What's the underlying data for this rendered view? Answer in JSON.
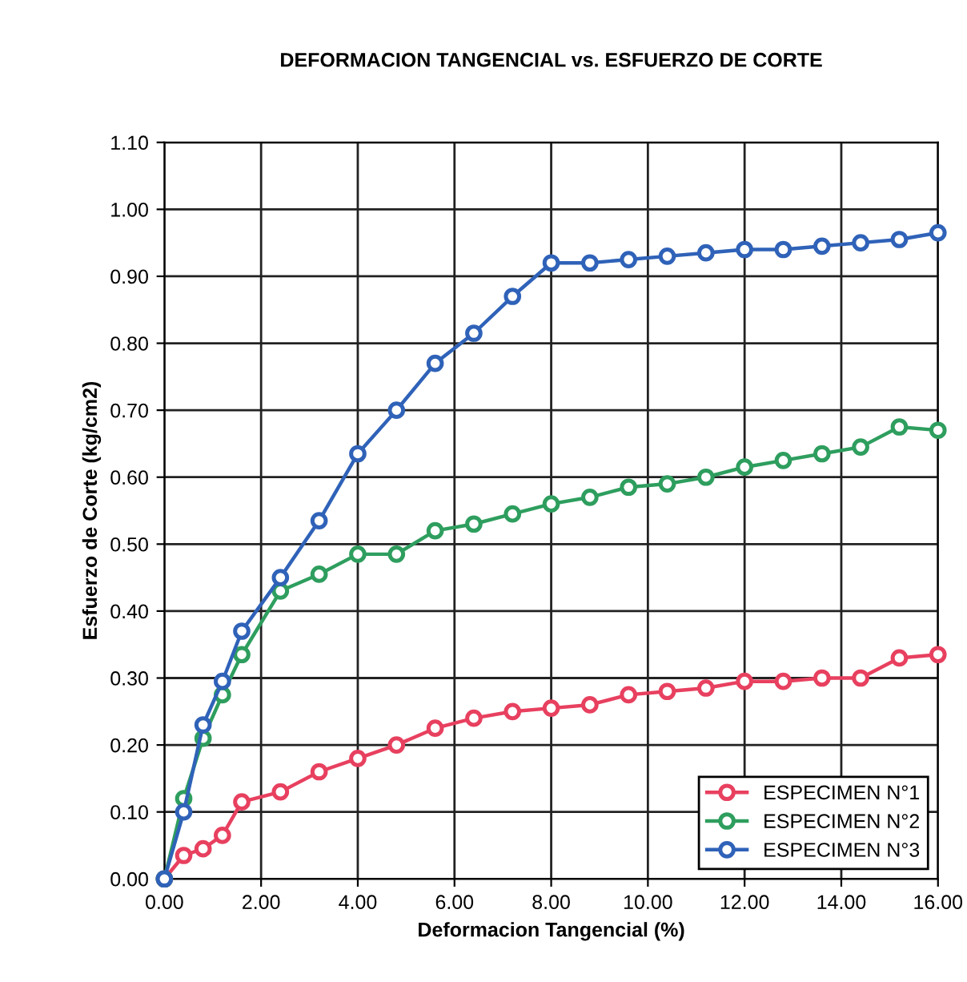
{
  "chart_data": {
    "type": "line",
    "title": "DEFORMACION TANGENCIAL vs. ESFUERZO DE CORTE",
    "xlabel": "Deformacion Tangencial (%)",
    "ylabel": "Esfuerzo de Corte (kg/cm2)",
    "x": [
      0,
      0.4,
      0.8,
      1.2,
      1.6,
      2.4,
      3.2,
      4.0,
      4.8,
      5.6,
      6.4,
      7.2,
      8.0,
      8.8,
      9.6,
      10.4,
      11.2,
      12.0,
      12.8,
      13.6,
      14.4,
      15.2,
      16.0
    ],
    "series": [
      {
        "name": "ESPECIMEN N°1",
        "color": "#e8405f",
        "values": [
          0,
          0.035,
          0.045,
          0.065,
          0.115,
          0.13,
          0.16,
          0.18,
          0.2,
          0.225,
          0.24,
          0.25,
          0.255,
          0.26,
          0.275,
          0.28,
          0.285,
          0.295,
          0.295,
          0.3,
          0.3,
          0.33,
          0.335
        ]
      },
      {
        "name": "ESPECIMEN N°2",
        "color": "#2e9e5e",
        "values": [
          0,
          0.12,
          0.21,
          0.275,
          0.335,
          0.43,
          0.455,
          0.485,
          0.485,
          0.52,
          0.53,
          0.545,
          0.56,
          0.57,
          0.585,
          0.59,
          0.6,
          0.615,
          0.625,
          0.635,
          0.645,
          0.675,
          0.67
        ]
      },
      {
        "name": "ESPECIMEN N°3",
        "color": "#2f62b8",
        "values": [
          0,
          0.1,
          0.23,
          0.295,
          0.37,
          0.45,
          0.535,
          0.635,
          0.7,
          0.77,
          0.815,
          0.87,
          0.92,
          0.92,
          0.925,
          0.93,
          0.935,
          0.94,
          0.94,
          0.945,
          0.95,
          0.955,
          0.965
        ]
      }
    ],
    "xlim": [
      0,
      16
    ],
    "xticks": [
      {
        "value": 0,
        "label": "0.00"
      },
      {
        "value": 2,
        "label": "2.00"
      },
      {
        "value": 4,
        "label": "4.00"
      },
      {
        "value": 6,
        "label": "6.00"
      },
      {
        "value": 8,
        "label": "8.00"
      },
      {
        "value": 10,
        "label": "10.00"
      },
      {
        "value": 12,
        "label": "12.00"
      },
      {
        "value": 14,
        "label": "14.00"
      },
      {
        "value": 16,
        "label": "16.00"
      }
    ],
    "ylim": [
      0,
      1.1
    ],
    "yticks": [
      {
        "value": 0,
        "label": "0.00"
      },
      {
        "value": 0.1,
        "label": "0.10"
      },
      {
        "value": 0.2,
        "label": "0.20"
      },
      {
        "value": 0.3,
        "label": "0.30"
      },
      {
        "value": 0.4,
        "label": "0.40"
      },
      {
        "value": 0.5,
        "label": "0.50"
      },
      {
        "value": 0.6,
        "label": "0.60"
      },
      {
        "value": 0.7,
        "label": "0.70"
      },
      {
        "value": 0.8,
        "label": "0.80"
      },
      {
        "value": 0.9,
        "label": "0.90"
      },
      {
        "value": 1.0,
        "label": "1.00"
      },
      {
        "value": 1.1,
        "label": "1.10"
      }
    ],
    "grid": true,
    "legend": "bottom right",
    "marker": "circle",
    "line_style": "solid"
  }
}
